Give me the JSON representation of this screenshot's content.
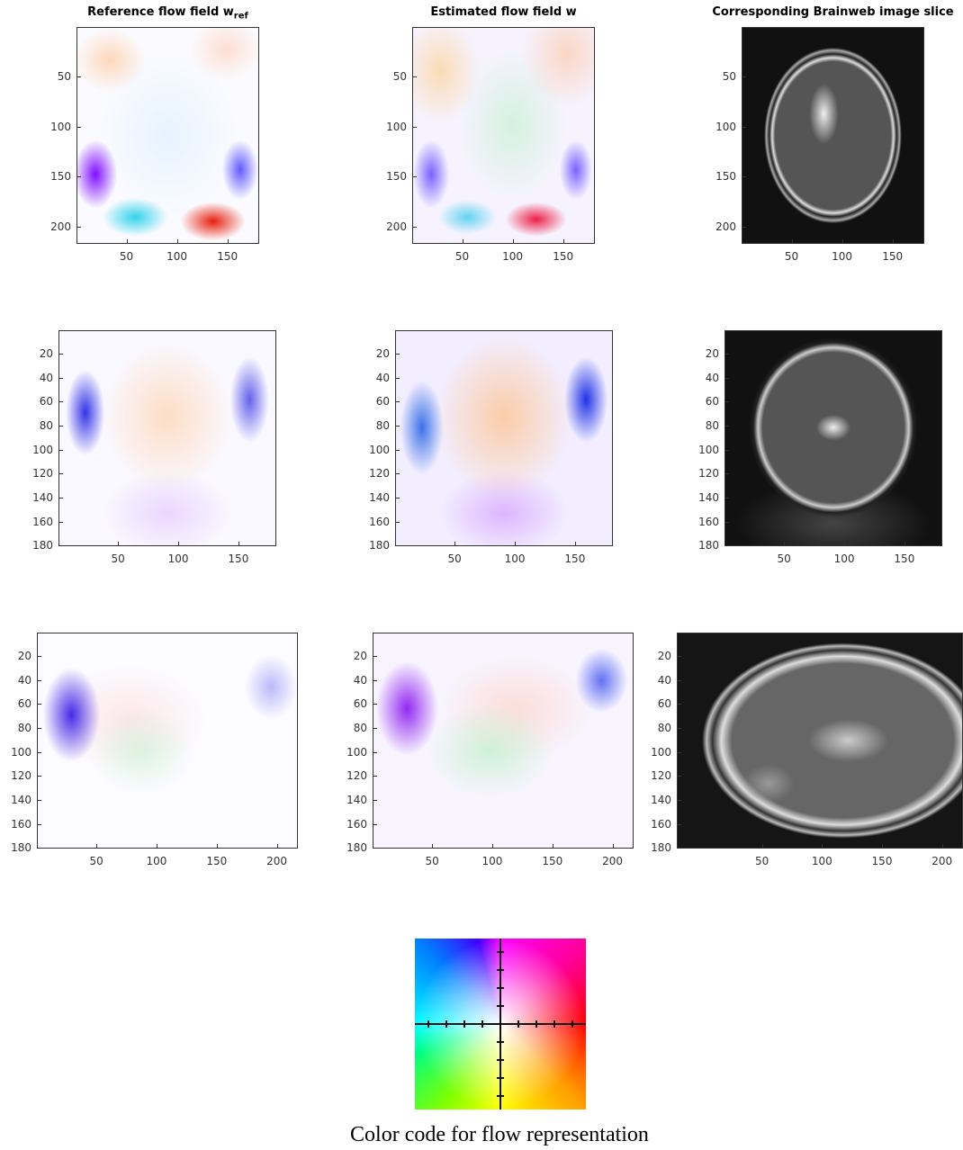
{
  "panels": [
    {
      "title": "Reference flow field w",
      "title_subscript": "ref",
      "xticks": [
        50,
        100,
        150
      ],
      "yticks": [
        50,
        100,
        150,
        200
      ],
      "xlim": [
        0.5,
        181.5
      ],
      "ylim": [
        0.5,
        217.5
      ]
    },
    {
      "title": "Estimated flow field w",
      "xticks": [
        50,
        100,
        150
      ],
      "yticks": [
        50,
        100,
        150,
        200
      ],
      "xlim": [
        0.5,
        181.5
      ],
      "ylim": [
        0.5,
        217.5
      ]
    },
    {
      "title": "Corresponding Brainweb image slice",
      "xticks": [
        50,
        100,
        150
      ],
      "yticks": [
        50,
        100,
        150,
        200
      ],
      "xlim": [
        0.5,
        181.5
      ],
      "ylim": [
        0.5,
        217.5
      ]
    },
    {
      "xticks": [
        50,
        100,
        150
      ],
      "yticks": [
        20,
        40,
        60,
        80,
        100,
        120,
        140,
        160,
        180
      ],
      "xlim": [
        0.5,
        181.5
      ],
      "ylim": [
        0.5,
        180.5
      ]
    },
    {
      "xticks": [
        50,
        100,
        150
      ],
      "yticks": [
        20,
        40,
        60,
        80,
        100,
        120,
        140,
        160,
        180
      ],
      "xlim": [
        0.5,
        181.5
      ],
      "ylim": [
        0.5,
        180.5
      ]
    },
    {
      "xticks": [
        50,
        100,
        150
      ],
      "yticks": [
        20,
        40,
        60,
        80,
        100,
        120,
        140,
        160,
        180
      ],
      "xlim": [
        0.5,
        181.5
      ],
      "ylim": [
        0.5,
        180.5
      ]
    },
    {
      "xticks": [
        50,
        100,
        150,
        200
      ],
      "yticks": [
        20,
        40,
        60,
        80,
        100,
        120,
        140,
        160,
        180
      ],
      "xlim": [
        0.5,
        217.5
      ],
      "ylim": [
        0.5,
        180.5
      ]
    },
    {
      "xticks": [
        50,
        100,
        150,
        200
      ],
      "yticks": [
        20,
        40,
        60,
        80,
        100,
        120,
        140,
        160,
        180
      ],
      "xlim": [
        0.5,
        217.5
      ],
      "ylim": [
        0.5,
        180.5
      ]
    },
    {
      "xticks": [
        50,
        100,
        150,
        200
      ],
      "yticks": [
        20,
        40,
        60,
        80,
        100,
        120,
        140,
        160,
        180
      ],
      "xlim": [
        -21,
        217.5
      ],
      "ylim": [
        0.5,
        180.5
      ]
    }
  ],
  "caption": "Color code for flow representation"
}
